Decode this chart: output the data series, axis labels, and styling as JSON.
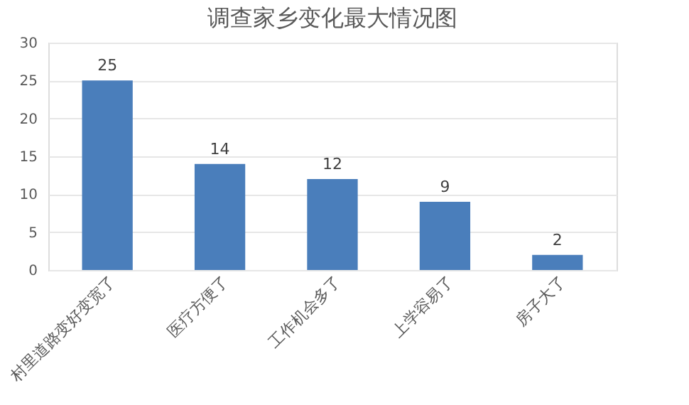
{
  "chart_data": {
    "type": "bar",
    "title": "调查家乡变化最大情况图",
    "categories": [
      "村里道路变好变宽了",
      "医疗方便了",
      "工作机会多了",
      "上学容易了",
      "房子大了"
    ],
    "values": [
      25,
      14,
      12,
      9,
      2
    ],
    "color": "#4a7ebb",
    "ylim": [
      0,
      30
    ],
    "yticks": [
      0,
      5,
      10,
      15,
      20,
      25,
      30
    ],
    "grid": "y",
    "data_labels": true
  }
}
